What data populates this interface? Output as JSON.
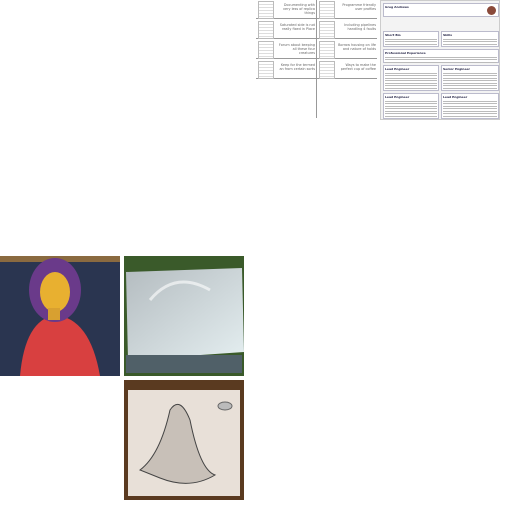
{
  "grid": {
    "cells": [
      {
        "text": "Documenting with very less of replica things"
      },
      {
        "text": "Programme friendly user profiles"
      },
      {
        "text": "Saturated side is not really fixed in Place"
      },
      {
        "text": "Including pipelines handling 4 faults"
      },
      {
        "text": "Forum about keeping all these four creatures"
      },
      {
        "text": "Borrow housing on life and nature of holds"
      },
      {
        "text": "Keep for the termed an from certain sorts"
      },
      {
        "text": "Ways to make the perfect cup of coffee"
      }
    ]
  },
  "resume": {
    "name": "Greg Andrews",
    "sections": [
      "Short Bio",
      "Skills",
      "Professional Experience",
      "Lead Engineer",
      "Senior Engineer",
      "Lead Engineer",
      "Lead Engineer"
    ]
  }
}
